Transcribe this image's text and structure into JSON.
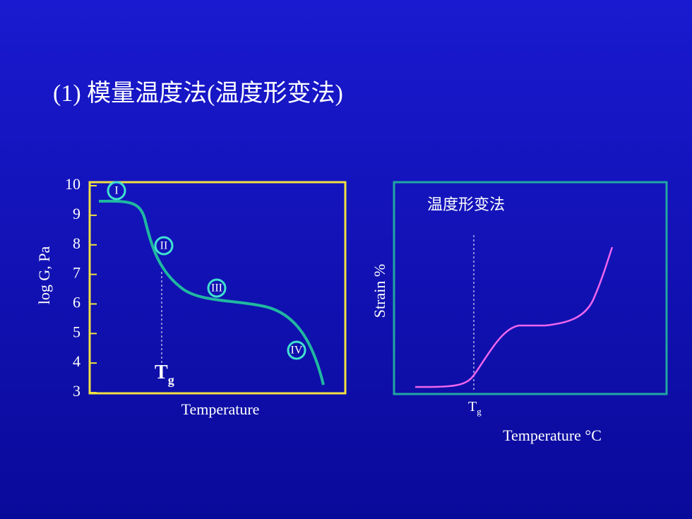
{
  "title": "(1) 模量温度法(温度形变法)",
  "left_chart": {
    "y_label": "log G, Pa",
    "x_label": "Temperature",
    "ylim": [
      3,
      10
    ],
    "yticks": [
      3,
      4,
      5,
      6,
      7,
      8,
      9,
      10
    ],
    "regions": [
      "I",
      "II",
      "III",
      "IV"
    ],
    "tg": "T",
    "tg_sub": "g"
  },
  "right_chart": {
    "label": "温度形变法",
    "y_label": "Strain %",
    "x_label": "Temperature °C",
    "tg": "T",
    "tg_sub": "g"
  }
}
